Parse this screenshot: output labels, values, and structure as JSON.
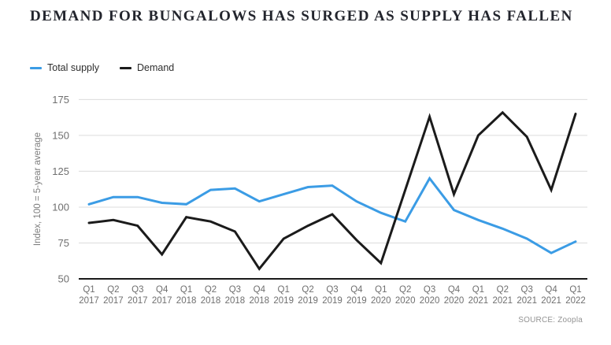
{
  "title": "DEMAND FOR BUNGALOWS HAS SURGED AS SUPPLY HAS FALLEN",
  "source": "SOURCE: Zoopla",
  "legend": [
    {
      "label": "Total supply",
      "color": "#3B9CE5"
    },
    {
      "label": "Demand",
      "color": "#1b1b1b"
    }
  ],
  "colors": {
    "supply_line": "#3B9CE5",
    "demand_line": "#1b1b1b",
    "gridline": "#dcdcdc",
    "axis": "#1a1a1a",
    "tick_text": "#6f6f6f"
  },
  "chart_data": {
    "type": "line",
    "title": "DEMAND FOR BUNGALOWS HAS SURGED AS SUPPLY HAS FALLEN",
    "xlabel": "",
    "ylabel": "Index, 100 = 5-year average",
    "ylim": [
      50,
      175
    ],
    "y_ticks": [
      50,
      75,
      100,
      125,
      150,
      175
    ],
    "grid": true,
    "legend_position": "top-left",
    "categories": [
      "Q1 2017",
      "Q2 2017",
      "Q3 2017",
      "Q4 2017",
      "Q1 2018",
      "Q2 2018",
      "Q3 2018",
      "Q4 2018",
      "Q1 2019",
      "Q2 2019",
      "Q3 2019",
      "Q4 2019",
      "Q1 2020",
      "Q2 2020",
      "Q3 2020",
      "Q4 2020",
      "Q1 2021",
      "Q2 2021",
      "Q3 2021",
      "Q4 2021",
      "Q1 2022"
    ],
    "series": [
      {
        "name": "Total supply",
        "color": "#3B9CE5",
        "values": [
          102,
          107,
          107,
          103,
          102,
          112,
          113,
          104,
          109,
          114,
          115,
          104,
          96,
          90,
          120,
          98,
          91,
          85,
          78,
          68,
          76
        ]
      },
      {
        "name": "Demand",
        "color": "#1b1b1b",
        "values": [
          89,
          91,
          87,
          67,
          93,
          90,
          83,
          57,
          78,
          87,
          95,
          77,
          61,
          112,
          163,
          109,
          150,
          166,
          149,
          112,
          165
        ]
      }
    ]
  }
}
